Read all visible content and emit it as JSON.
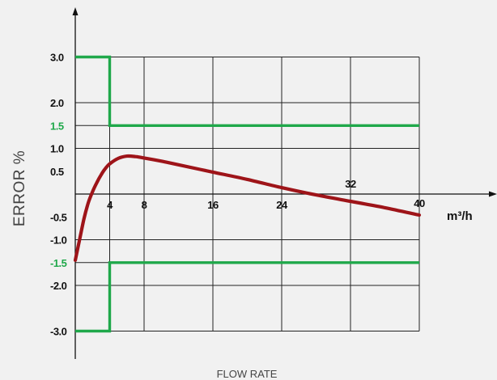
{
  "chart_data": {
    "type": "line",
    "title": "",
    "ylabel": "ERROR %",
    "xlabel": "FLOW RATE",
    "x_unit": "m³/h",
    "xlim": [
      0,
      40
    ],
    "ylim": [
      -3.0,
      3.0
    ],
    "grid": true,
    "x_ticks": [
      {
        "label": "4",
        "value": 4
      },
      {
        "label": "8",
        "value": 8
      },
      {
        "label": "16",
        "value": 16
      },
      {
        "label": "24",
        "value": 24
      },
      {
        "label": "32",
        "value": 32
      },
      {
        "label": "40",
        "value": 40
      }
    ],
    "y_ticks": [
      {
        "label": "3.0",
        "value": 3.0,
        "highlight": false
      },
      {
        "label": "2.0",
        "value": 2.0,
        "highlight": false
      },
      {
        "label": "1.5",
        "value": 1.5,
        "highlight": true
      },
      {
        "label": "1.0",
        "value": 1.0,
        "highlight": false
      },
      {
        "label": "0.5",
        "value": 0.5,
        "highlight": false
      },
      {
        "label": "-0.5",
        "value": -0.5,
        "highlight": false
      },
      {
        "label": "-1.0",
        "value": -1.0,
        "highlight": false
      },
      {
        "label": "-1.5",
        "value": -1.5,
        "highlight": true
      },
      {
        "label": "-2.0",
        "value": -2.0,
        "highlight": false
      },
      {
        "label": "-3.0",
        "value": -3.0,
        "highlight": false
      }
    ],
    "series": [
      {
        "role": "upper-limit",
        "color": "#1fa84a",
        "step": true,
        "x": [
          0,
          4,
          4,
          40
        ],
        "y": [
          3.0,
          3.0,
          1.5,
          1.5
        ]
      },
      {
        "role": "lower-limit",
        "color": "#1fa84a",
        "step": true,
        "x": [
          0,
          4,
          4,
          40
        ],
        "y": [
          -3.0,
          -3.0,
          -1.5,
          -1.5
        ]
      },
      {
        "role": "error-curve",
        "color": "#9e1419",
        "step": false,
        "x": [
          0,
          0.5,
          1,
          1.5,
          2,
          2.5,
          3,
          3.5,
          4,
          5,
          6,
          7,
          8,
          10,
          12,
          16,
          20,
          24,
          28,
          32,
          36,
          40
        ],
        "y": [
          -1.45,
          -1.0,
          -0.55,
          -0.2,
          0.05,
          0.25,
          0.42,
          0.56,
          0.66,
          0.78,
          0.83,
          0.82,
          0.79,
          0.72,
          0.64,
          0.48,
          0.32,
          0.14,
          -0.02,
          -0.16,
          -0.3,
          -0.46
        ]
      }
    ]
  },
  "colors": {
    "background": "#f1f1f1",
    "limit_line": "#1fa84a",
    "error_curve": "#9e1419",
    "axis": "#111111"
  }
}
